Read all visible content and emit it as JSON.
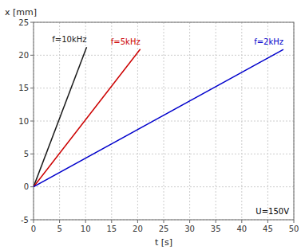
{
  "chart_data": {
    "type": "line",
    "xlabel": "t [s]",
    "ylabel": "x [mm]",
    "annotation": "U=150V",
    "xlim": [
      0,
      50
    ],
    "ylim": [
      -5,
      25
    ],
    "xticks": [
      0,
      5,
      10,
      15,
      20,
      25,
      30,
      35,
      40,
      45,
      50
    ],
    "yticks": [
      -5,
      0,
      5,
      10,
      15,
      20,
      25
    ],
    "grid": true,
    "series": [
      {
        "name": "f=10kHz",
        "color": "#1a1a1a",
        "x": [
          0,
          10.2
        ],
        "values": [
          0,
          21.216
        ]
      },
      {
        "name": "f=5kHz",
        "color": "#cc0000",
        "x": [
          0,
          20.5
        ],
        "values": [
          0,
          20.91
        ]
      },
      {
        "name": "f=2kHz",
        "color": "#0000cc",
        "x": [
          0,
          48.0
        ],
        "values": [
          0,
          20.88
        ]
      }
    ]
  }
}
